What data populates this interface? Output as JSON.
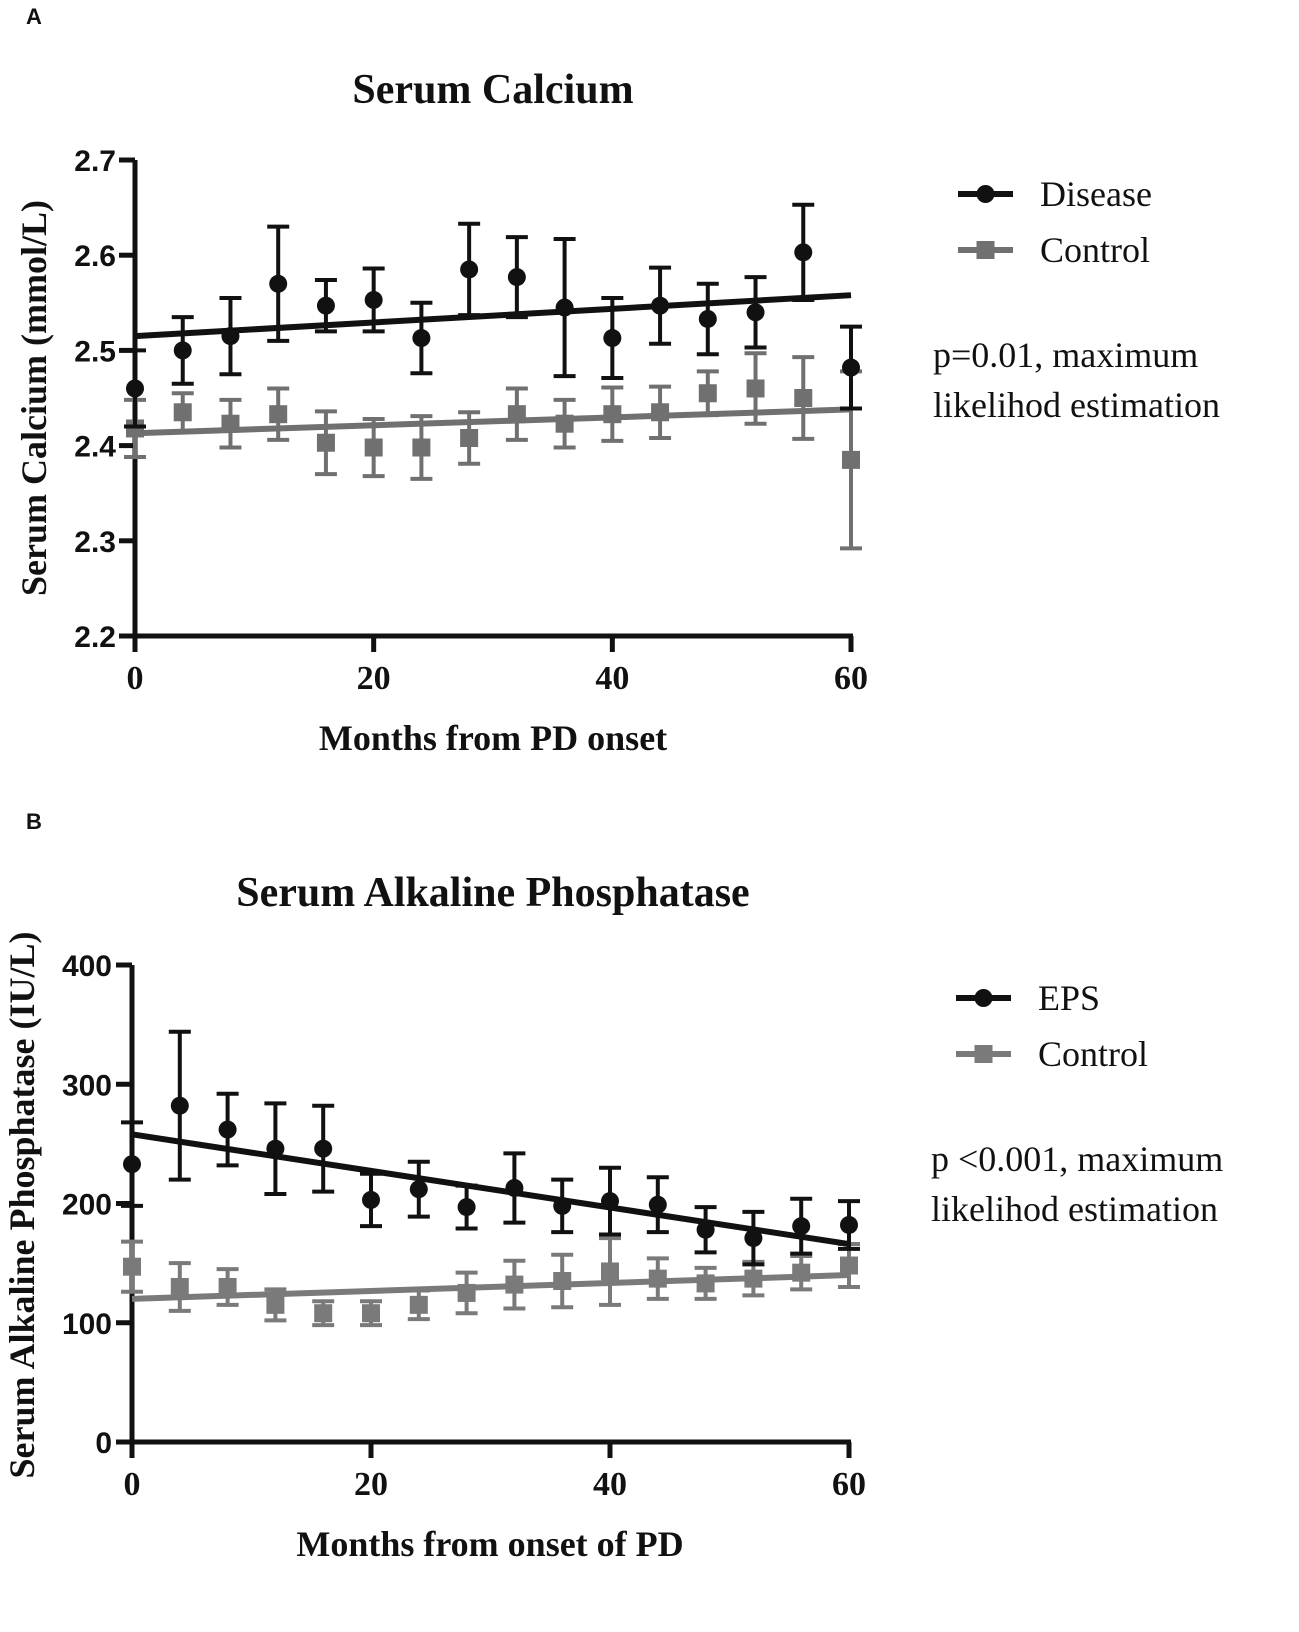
{
  "chart_data": [
    {
      "panel": "A",
      "type": "line",
      "title": "Serum Calcium",
      "xlabel": "Months from PD onset",
      "ylabel": "Serum Calcium (mmol/L)",
      "xlim": [
        0,
        60
      ],
      "ylim": [
        2.2,
        2.7
      ],
      "xticks": [
        0,
        20,
        40,
        60
      ],
      "xtick_labels": [
        "0",
        "20",
        "40",
        "60"
      ],
      "yticks": [
        2.2,
        2.3,
        2.4,
        2.5,
        2.6,
        2.7
      ],
      "ytick_labels": [
        "2.2",
        "2.3",
        "2.4",
        "2.5",
        "2.6",
        "2.7"
      ],
      "annotation": [
        "p=0.01, maximum",
        "likelihod estimation"
      ],
      "legend_position": "right",
      "x": [
        0,
        4,
        8,
        12,
        16,
        20,
        24,
        28,
        32,
        36,
        40,
        44,
        48,
        52,
        56,
        60
      ],
      "series": [
        {
          "name": "Disease",
          "color": "#111111",
          "marker": "circle",
          "values": [
            2.46,
            2.5,
            2.515,
            2.57,
            2.547,
            2.553,
            2.513,
            2.585,
            2.577,
            2.545,
            2.513,
            2.547,
            2.533,
            2.54,
            2.603,
            2.482
          ],
          "errors": [
            0.04,
            0.035,
            0.04,
            0.06,
            0.027,
            0.033,
            0.037,
            0.048,
            0.042,
            0.072,
            0.042,
            0.04,
            0.037,
            0.037,
            0.05,
            0.043
          ],
          "fit_line": [
            2.515,
            2.558
          ]
        },
        {
          "name": "Control",
          "color": "#707070",
          "marker": "square",
          "values": [
            2.418,
            2.435,
            2.423,
            2.433,
            2.403,
            2.398,
            2.398,
            2.408,
            2.433,
            2.423,
            2.433,
            2.435,
            2.455,
            2.46,
            2.45,
            2.385
          ],
          "errors": [
            0.03,
            0.02,
            0.025,
            0.027,
            0.033,
            0.03,
            0.033,
            0.027,
            0.027,
            0.025,
            0.028,
            0.027,
            0.023,
            0.037,
            0.043,
            0.093
          ],
          "fit_line": [
            2.413,
            2.438
          ]
        }
      ]
    },
    {
      "panel": "B",
      "type": "line",
      "title": "Serum Alkaline Phosphatase",
      "xlabel": "Months from onset of PD",
      "ylabel": "Serum Alkaline Phosphatase (IU/L)",
      "xlim": [
        0,
        60
      ],
      "ylim": [
        0,
        400
      ],
      "xticks": [
        0,
        20,
        40,
        60
      ],
      "xtick_labels": [
        "0",
        "20",
        "40",
        "60"
      ],
      "yticks": [
        0,
        100,
        200,
        300,
        400
      ],
      "ytick_labels": [
        "0",
        "100",
        "200",
        "300",
        "400"
      ],
      "annotation": [
        "p <0.001, maximum",
        "likelihod estimation"
      ],
      "legend_position": "right",
      "x": [
        0,
        4,
        8,
        12,
        16,
        20,
        24,
        28,
        32,
        36,
        40,
        44,
        48,
        52,
        56,
        60
      ],
      "series": [
        {
          "name": "EPS",
          "color": "#111111",
          "marker": "circle",
          "values": [
            233,
            282,
            262,
            246,
            246,
            203,
            212,
            197,
            213,
            198,
            202,
            199,
            178,
            171,
            181,
            182
          ],
          "errors": [
            35,
            62,
            30,
            38,
            36,
            22,
            23,
            18,
            29,
            22,
            28,
            23,
            19,
            22,
            23,
            20
          ],
          "fit_line": [
            258,
            166
          ]
        },
        {
          "name": "Control",
          "color": "#7a7a7a",
          "marker": "square",
          "values": [
            147,
            130,
            130,
            115,
            108,
            108,
            115,
            125,
            132,
            135,
            143,
            137,
            133,
            137,
            142,
            148
          ],
          "errors": [
            21,
            20,
            15,
            13,
            10,
            10,
            12,
            17,
            20,
            22,
            28,
            17,
            13,
            14,
            14,
            18
          ],
          "fit_line": [
            120,
            140
          ]
        }
      ]
    }
  ]
}
